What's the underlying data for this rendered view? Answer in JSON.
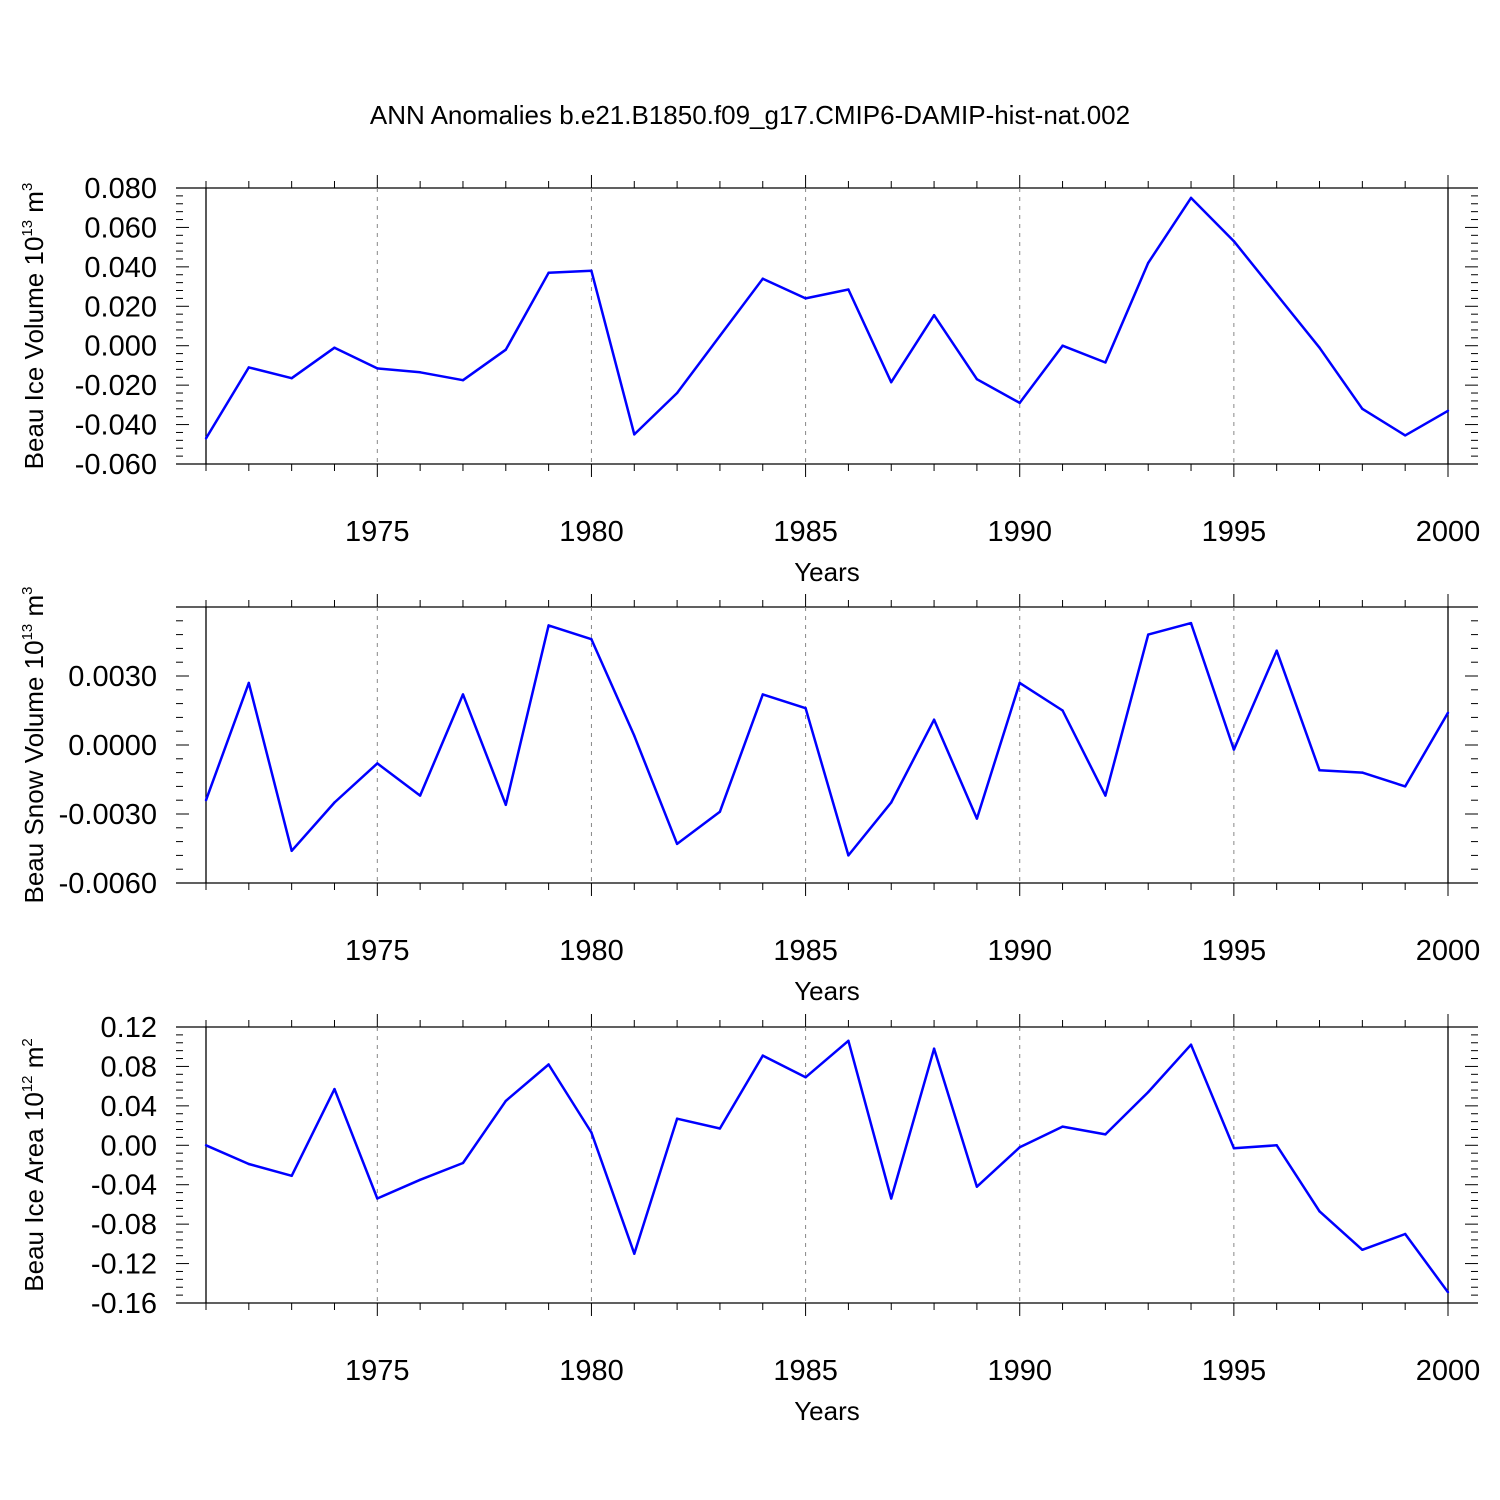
{
  "title": "ANN Anomalies b.e21.B1850.f09_g17.CMIP6-DAMIP-hist-nat.002",
  "colors": {
    "series": "#0000ff",
    "axis": "#000000",
    "grid": "#888888"
  },
  "chart_data": [
    {
      "type": "line",
      "title": "ANN Anomalies b.e21.B1850.f09_g17.CMIP6-DAMIP-hist-nat.002",
      "xlabel": "Years",
      "ylabel": {
        "prefix": "Beau Ice Volume 10",
        "exp": "13",
        "unit": " m",
        "unit_exp": "3"
      },
      "xlim": [
        1971,
        2000
      ],
      "ylim": [
        -0.06,
        0.08
      ],
      "xticks": [
        1975,
        1980,
        1985,
        1990,
        1995,
        2000
      ],
      "yticks": [
        "-0.060",
        "-0.040",
        "-0.020",
        "0.000",
        "0.020",
        "0.040",
        "0.060",
        "0.080"
      ],
      "x": [
        1971,
        1972,
        1973,
        1974,
        1975,
        1976,
        1977,
        1978,
        1979,
        1980,
        1981,
        1982,
        1983,
        1984,
        1985,
        1986,
        1987,
        1988,
        1989,
        1990,
        1991,
        1992,
        1993,
        1994,
        1995,
        1996,
        1997,
        1998,
        1999,
        2000
      ],
      "values": [
        -0.047,
        -0.011,
        -0.0165,
        -0.001,
        -0.0115,
        -0.0135,
        -0.0175,
        -0.002,
        0.037,
        0.038,
        -0.045,
        -0.024,
        0.005,
        0.034,
        0.024,
        0.0285,
        -0.0185,
        0.0155,
        -0.017,
        -0.029,
        0.0,
        -0.0085,
        0.042,
        0.075,
        0.053,
        0.026,
        -0.001,
        -0.032,
        -0.0455,
        -0.033
      ]
    },
    {
      "type": "line",
      "xlabel": "Years",
      "ylabel": {
        "prefix": "Beau Snow Volume 10",
        "exp": "13",
        "unit": " m",
        "unit_exp": "3"
      },
      "xlim": [
        1971,
        2000
      ],
      "ylim": [
        -0.006,
        0.006
      ],
      "xticks": [
        1975,
        1980,
        1985,
        1990,
        1995,
        2000
      ],
      "yticks": [
        "-0.0060",
        "-0.0030",
        "0.0000",
        "0.0030"
      ],
      "x": [
        1971,
        1972,
        1973,
        1974,
        1975,
        1976,
        1977,
        1978,
        1979,
        1980,
        1981,
        1982,
        1983,
        1984,
        1985,
        1986,
        1987,
        1988,
        1989,
        1990,
        1991,
        1992,
        1993,
        1994,
        1995,
        1996,
        1997,
        1998,
        1999,
        2000
      ],
      "values": [
        -0.0024,
        0.0027,
        -0.0046,
        -0.0025,
        -0.0008,
        -0.0022,
        0.0022,
        -0.0026,
        0.0052,
        0.0046,
        0.0004,
        -0.0043,
        -0.0029,
        0.0022,
        0.0016,
        -0.0048,
        -0.0025,
        0.0011,
        -0.0032,
        0.0027,
        0.0015,
        -0.0022,
        0.0048,
        0.0053,
        -0.0002,
        0.0041,
        -0.0011,
        -0.0012,
        -0.0018,
        0.0014
      ]
    },
    {
      "type": "line",
      "xlabel": "Years",
      "ylabel": {
        "prefix": "Beau Ice Area 10",
        "exp": "12",
        "unit": " m",
        "unit_exp": "2"
      },
      "xlim": [
        1971,
        2000
      ],
      "ylim": [
        -0.16,
        0.12
      ],
      "xticks": [
        1975,
        1980,
        1985,
        1990,
        1995,
        2000
      ],
      "yticks": [
        "-0.16",
        "-0.12",
        "-0.08",
        "-0.04",
        "0.00",
        "0.04",
        "0.08",
        "0.12"
      ],
      "x": [
        1971,
        1972,
        1973,
        1974,
        1975,
        1976,
        1977,
        1978,
        1979,
        1980,
        1981,
        1982,
        1983,
        1984,
        1985,
        1986,
        1987,
        1988,
        1989,
        1990,
        1991,
        1992,
        1993,
        1994,
        1995,
        1996,
        1997,
        1998,
        1999,
        2000
      ],
      "values": [
        0.0,
        -0.019,
        -0.031,
        0.057,
        -0.054,
        -0.035,
        -0.018,
        0.045,
        0.082,
        0.013,
        -0.11,
        0.027,
        0.017,
        0.091,
        0.069,
        0.106,
        -0.054,
        0.098,
        -0.042,
        -0.002,
        0.019,
        0.011,
        0.054,
        0.102,
        -0.003,
        0.0,
        -0.067,
        -0.106,
        -0.09,
        -0.149
      ]
    }
  ]
}
